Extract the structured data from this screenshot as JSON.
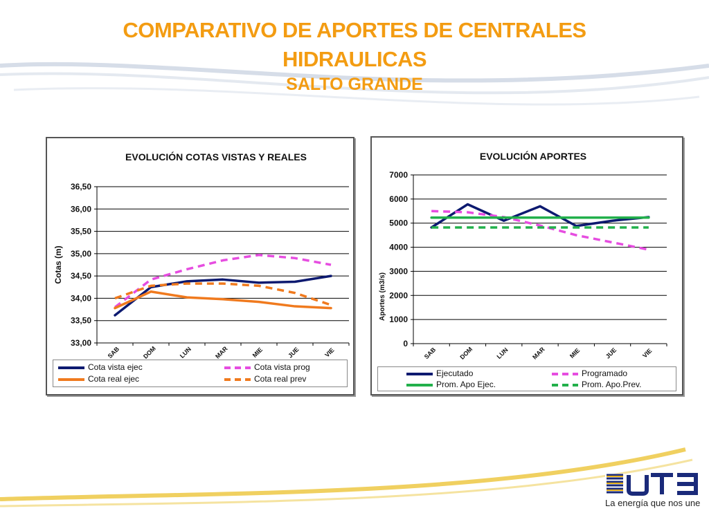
{
  "slide": {
    "title_line1": "COMPARATIVO DE APORTES DE CENTRALES",
    "title_line2": "HIDRAULICAS",
    "subtitle": "SALTO GRANDE",
    "tagline": "La energía que nos une",
    "accent_color": "#f39c12",
    "logo_icon": "ute-logo-icon"
  },
  "chart_data": [
    {
      "type": "line",
      "title": "EVOLUCIÓN  COTAS VISTAS Y REALES",
      "xlabel": "",
      "ylabel": "Cotas (m)",
      "categories": [
        "SAB",
        "DOM",
        "LUN",
        "MAR",
        "MIE",
        "JUE",
        "VIE"
      ],
      "ylim": [
        33.0,
        36.5
      ],
      "yticks": [
        "33,00",
        "33,50",
        "34,00",
        "34,50",
        "35,00",
        "35,50",
        "36,00",
        "36,50"
      ],
      "grid": true,
      "legend_position": "bottom",
      "series": [
        {
          "name": "Cota vista ejec",
          "values": [
            33.62,
            34.25,
            34.38,
            34.42,
            34.35,
            34.37,
            34.5
          ],
          "color": "#0d1a70",
          "dash": "solid"
        },
        {
          "name": "Cota vista prog",
          "values": [
            33.8,
            34.42,
            34.65,
            34.85,
            34.97,
            34.9,
            34.75
          ],
          "color": "#e64de0",
          "dash": "dashed"
        },
        {
          "name": "Cota real ejec",
          "values": [
            33.78,
            34.15,
            34.02,
            33.98,
            33.92,
            33.82,
            33.78
          ],
          "color": "#f07a1e",
          "dash": "solid"
        },
        {
          "name": "Cota real prev",
          "values": [
            34.0,
            34.28,
            34.33,
            34.33,
            34.28,
            34.12,
            33.85
          ],
          "color": "#f07a1e",
          "dash": "dashed"
        }
      ]
    },
    {
      "type": "line",
      "title": "EVOLUCIÓN  APORTES",
      "xlabel": "",
      "ylabel": "Aportes (m3/s)",
      "categories": [
        "SAB",
        "DOM",
        "LUN",
        "MAR",
        "MIE",
        "JUE",
        "VIE"
      ],
      "ylim": [
        0,
        7000
      ],
      "yticks": [
        "0",
        "1000",
        "2000",
        "3000",
        "4000",
        "5000",
        "6000",
        "7000"
      ],
      "grid": true,
      "legend_position": "bottom",
      "series": [
        {
          "name": "Ejecutado",
          "values": [
            4820,
            5780,
            5100,
            5700,
            4880,
            5100,
            5250
          ],
          "color": "#0d1a70",
          "dash": "solid"
        },
        {
          "name": "Programado",
          "values": [
            5500,
            5450,
            5250,
            4900,
            4500,
            4200,
            3900
          ],
          "color": "#e64de0",
          "dash": "dashed"
        },
        {
          "name": "Prom. Apo Ejec.",
          "values": [
            5230,
            5230,
            5230,
            5230,
            5230,
            5230,
            5230
          ],
          "color": "#22b04b",
          "dash": "solid"
        },
        {
          "name": "Prom. Apo.Prev.",
          "values": [
            4820,
            4820,
            4820,
            4820,
            4820,
            4820,
            4820
          ],
          "color": "#22b04b",
          "dash": "dashed"
        }
      ]
    }
  ]
}
